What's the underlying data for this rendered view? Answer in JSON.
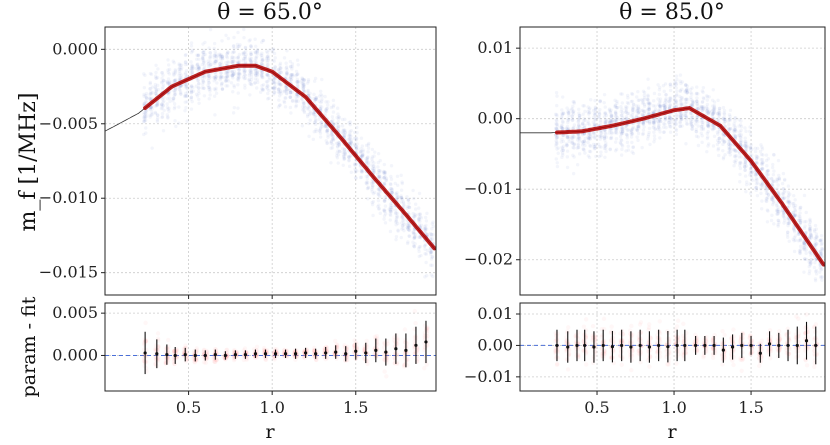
{
  "colors": {
    "scatter_main": "#7b93d6",
    "fit_curve": "#b00000",
    "thin_line": "#333333",
    "residual_scatter": "#ff8a8a",
    "error_bar": "#111111",
    "zero_line": "#4a6fd8",
    "grid": "#cccccc"
  },
  "chart_data": [
    {
      "type": "scatter",
      "panel": "main-left",
      "title": "θ = 65.0°",
      "ylabel": "m_f [1/MHz]",
      "xlabel": "",
      "xlim": [
        0.0,
        1.98
      ],
      "ylim": [
        -0.0165,
        0.0015
      ],
      "xticks": [
        0.5,
        1.0,
        1.5
      ],
      "yticks": [
        0.0,
        -0.005,
        -0.01,
        -0.015
      ],
      "ytick_labels": [
        "0.000",
        "−0.005",
        "−0.010",
        "−0.015"
      ],
      "grid": true,
      "fit_curve": {
        "x": [
          0.0,
          0.2,
          0.4,
          0.6,
          0.8,
          0.9,
          1.0,
          1.2,
          1.4,
          1.6,
          1.8,
          1.98
        ],
        "y": [
          -0.0055,
          -0.0043,
          -0.0025,
          -0.0015,
          -0.0011,
          -0.0011,
          -0.0015,
          -0.0032,
          -0.0058,
          -0.0085,
          -0.0111,
          -0.0135
        ]
      }
    },
    {
      "type": "scatter",
      "panel": "main-right",
      "title": "θ = 85.0°",
      "xlim": [
        0.0,
        1.98
      ],
      "ylim": [
        -0.025,
        0.013
      ],
      "xticks": [
        0.5,
        1.0,
        1.5
      ],
      "yticks": [
        0.01,
        0.0,
        -0.01,
        -0.02
      ],
      "ytick_labels": [
        "0.01",
        "0.00",
        "−0.01",
        "−0.02"
      ],
      "grid": true,
      "fit_curve": {
        "x": [
          0.0,
          0.2,
          0.4,
          0.6,
          0.8,
          1.0,
          1.1,
          1.3,
          1.5,
          1.7,
          1.98
        ],
        "y": [
          -0.002,
          -0.002,
          -0.0018,
          -0.001,
          0.0,
          0.0012,
          0.0015,
          -0.001,
          -0.006,
          -0.012,
          -0.021
        ]
      }
    },
    {
      "type": "scatter",
      "panel": "resid-left",
      "ylabel": "param - fit",
      "xlabel": "r",
      "xlim": [
        0.0,
        1.98
      ],
      "ylim": [
        -0.0042,
        0.0062
      ],
      "xticks": [
        0.5,
        1.0,
        1.5
      ],
      "xtick_labels": [
        "0.5",
        "1.0",
        "1.5"
      ],
      "yticks": [
        0.005,
        0.0
      ],
      "ytick_labels": [
        "0.005",
        "0.000"
      ],
      "grid": true,
      "errorbars": {
        "x": [
          0.24,
          0.31,
          0.37,
          0.42,
          0.48,
          0.54,
          0.6,
          0.66,
          0.72,
          0.78,
          0.84,
          0.9,
          0.96,
          1.02,
          1.08,
          1.14,
          1.2,
          1.26,
          1.32,
          1.38,
          1.44,
          1.5,
          1.56,
          1.62,
          1.68,
          1.74,
          1.8,
          1.86,
          1.92
        ],
        "y": [
          0.0003,
          0.0002,
          0.0001,
          0.0,
          0.0001,
          0.0,
          0.0,
          0.0001,
          0.0,
          0.0001,
          0.0001,
          0.0002,
          0.0002,
          0.0002,
          0.0002,
          0.0002,
          0.0003,
          0.0002,
          0.0003,
          0.0004,
          0.0002,
          0.0005,
          0.0003,
          0.0006,
          0.0004,
          0.0008,
          0.0006,
          0.0012,
          0.0016
        ],
        "err": [
          0.0025,
          0.0017,
          0.0012,
          0.001,
          0.0008,
          0.0007,
          0.0006,
          0.0006,
          0.0005,
          0.0005,
          0.0005,
          0.0005,
          0.0005,
          0.0005,
          0.0005,
          0.0006,
          0.0006,
          0.0006,
          0.0007,
          0.0008,
          0.0009,
          0.001,
          0.0012,
          0.0014,
          0.0016,
          0.0018,
          0.002,
          0.0022,
          0.0025
        ]
      }
    },
    {
      "type": "scatter",
      "panel": "resid-right",
      "xlabel": "r",
      "xlim": [
        0.0,
        1.98
      ],
      "ylim": [
        -0.0145,
        0.0135
      ],
      "xticks": [
        0.5,
        1.0,
        1.5
      ],
      "xtick_labels": [
        "0.5",
        "1.0",
        "1.5"
      ],
      "yticks": [
        0.01,
        0.0,
        -0.01
      ],
      "ytick_labels": [
        "0.01",
        "0.00",
        "−0.01"
      ],
      "grid": true,
      "errorbars": {
        "x": [
          0.24,
          0.31,
          0.37,
          0.42,
          0.48,
          0.54,
          0.6,
          0.66,
          0.72,
          0.78,
          0.84,
          0.9,
          0.96,
          1.02,
          1.07,
          1.14,
          1.2,
          1.26,
          1.32,
          1.38,
          1.44,
          1.5,
          1.56,
          1.62,
          1.68,
          1.74,
          1.8,
          1.86,
          1.92
        ],
        "y": [
          0.0,
          -0.0005,
          0.0,
          0.0,
          -0.0005,
          0.0,
          -0.0004,
          0.0,
          -0.0005,
          0.0,
          -0.0005,
          0.0,
          -0.0004,
          0.0,
          0.0,
          0.0,
          0.0,
          0.0,
          -0.0015,
          -0.0005,
          0.0,
          0.0,
          -0.0025,
          0.0005,
          0.0,
          0.0,
          0.0,
          0.0015,
          0.0
        ],
        "err": [
          0.005,
          0.005,
          0.005,
          0.005,
          0.005,
          0.005,
          0.005,
          0.005,
          0.005,
          0.005,
          0.005,
          0.005,
          0.005,
          0.005,
          0.005,
          0.003,
          0.003,
          0.003,
          0.004,
          0.004,
          0.004,
          0.003,
          0.003,
          0.004,
          0.004,
          0.005,
          0.006,
          0.006,
          0.006
        ]
      }
    }
  ]
}
